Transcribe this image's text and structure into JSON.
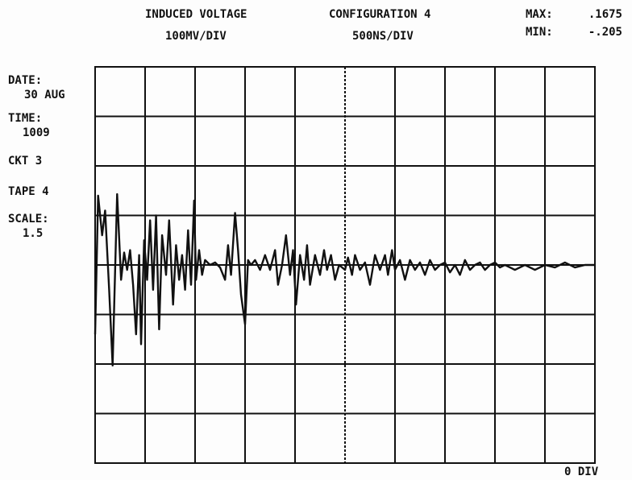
{
  "header": {
    "title": "INDUCED VOLTAGE",
    "vscale": "100MV/DIV",
    "config": "CONFIGURATION 4",
    "hscale": "500NS/DIV",
    "max_label": "MAX:",
    "max_value": ".1675",
    "min_label": "MIN:",
    "min_value": "-.205"
  },
  "side": {
    "date_label": "DATE:",
    "date": "30 AUG",
    "time_label": "TIME:",
    "time": "1009",
    "ckt": "CKT 3",
    "tape": "TAPE 4",
    "scale_label": "SCALE:",
    "scale": "1.5"
  },
  "footer": "0 DIV",
  "chart_data": {
    "type": "line",
    "color": "#111111",
    "grid": true,
    "xlim": [
      0,
      10
    ],
    "ylim": [
      -4,
      4
    ],
    "x": [
      0.0,
      0.06,
      0.14,
      0.2,
      0.28,
      0.35,
      0.44,
      0.52,
      0.58,
      0.64,
      0.7,
      0.76,
      0.82,
      0.88,
      0.92,
      0.98,
      1.04,
      1.1,
      1.16,
      1.22,
      1.28,
      1.34,
      1.42,
      1.48,
      1.56,
      1.62,
      1.68,
      1.74,
      1.8,
      1.86,
      1.92,
      1.98,
      2.02,
      2.08,
      2.14,
      2.2,
      2.3,
      2.4,
      2.5,
      2.6,
      2.66,
      2.72,
      2.8,
      2.86,
      2.92,
      3.0,
      3.06,
      3.12,
      3.2,
      3.3,
      3.4,
      3.5,
      3.6,
      3.66,
      3.74,
      3.82,
      3.9,
      3.96,
      4.02,
      4.1,
      4.18,
      4.24,
      4.3,
      4.4,
      4.5,
      4.58,
      4.64,
      4.72,
      4.8,
      4.88,
      5.0,
      5.06,
      5.14,
      5.2,
      5.3,
      5.4,
      5.5,
      5.6,
      5.7,
      5.8,
      5.86,
      5.94,
      6.0,
      6.1,
      6.2,
      6.3,
      6.4,
      6.5,
      6.6,
      6.7,
      6.8,
      6.9,
      7.0,
      7.1,
      7.2,
      7.3,
      7.4,
      7.5,
      7.6,
      7.7,
      7.8,
      7.9,
      8.0,
      8.1,
      8.2,
      8.4,
      8.6,
      8.8,
      9.0,
      9.2,
      9.4,
      9.6,
      9.8,
      10.0
    ],
    "values": [
      -1.4,
      1.4,
      0.6,
      1.1,
      -0.5,
      -2.03,
      1.43,
      -0.3,
      0.25,
      -0.1,
      0.3,
      -0.4,
      -1.4,
      0.2,
      -1.6,
      0.5,
      -0.3,
      0.9,
      -0.5,
      1.0,
      -1.3,
      0.6,
      -0.2,
      0.9,
      -0.8,
      0.4,
      -0.3,
      0.2,
      -0.5,
      0.7,
      -0.4,
      1.3,
      -0.3,
      0.3,
      -0.2,
      0.1,
      0.0,
      0.05,
      -0.05,
      -0.3,
      0.4,
      -0.2,
      1.05,
      0.3,
      -0.6,
      -1.2,
      0.1,
      0.0,
      0.1,
      -0.1,
      0.2,
      -0.1,
      0.3,
      -0.4,
      0.0,
      0.6,
      -0.2,
      0.3,
      -0.8,
      0.2,
      -0.3,
      0.4,
      -0.4,
      0.2,
      -0.2,
      0.3,
      -0.1,
      0.2,
      -0.3,
      0.0,
      -0.1,
      0.15,
      -0.2,
      0.2,
      -0.1,
      0.05,
      -0.4,
      0.2,
      -0.1,
      0.2,
      -0.2,
      0.3,
      -0.1,
      0.1,
      -0.3,
      0.1,
      -0.1,
      0.05,
      -0.2,
      0.1,
      -0.1,
      0.0,
      0.05,
      -0.15,
      0.0,
      -0.2,
      0.1,
      -0.1,
      0.0,
      0.05,
      -0.1,
      0.0,
      0.05,
      -0.05,
      0.0,
      -0.1,
      0.0,
      -0.1,
      0.0,
      -0.05,
      0.05,
      -0.05,
      0.0,
      0.0
    ]
  }
}
